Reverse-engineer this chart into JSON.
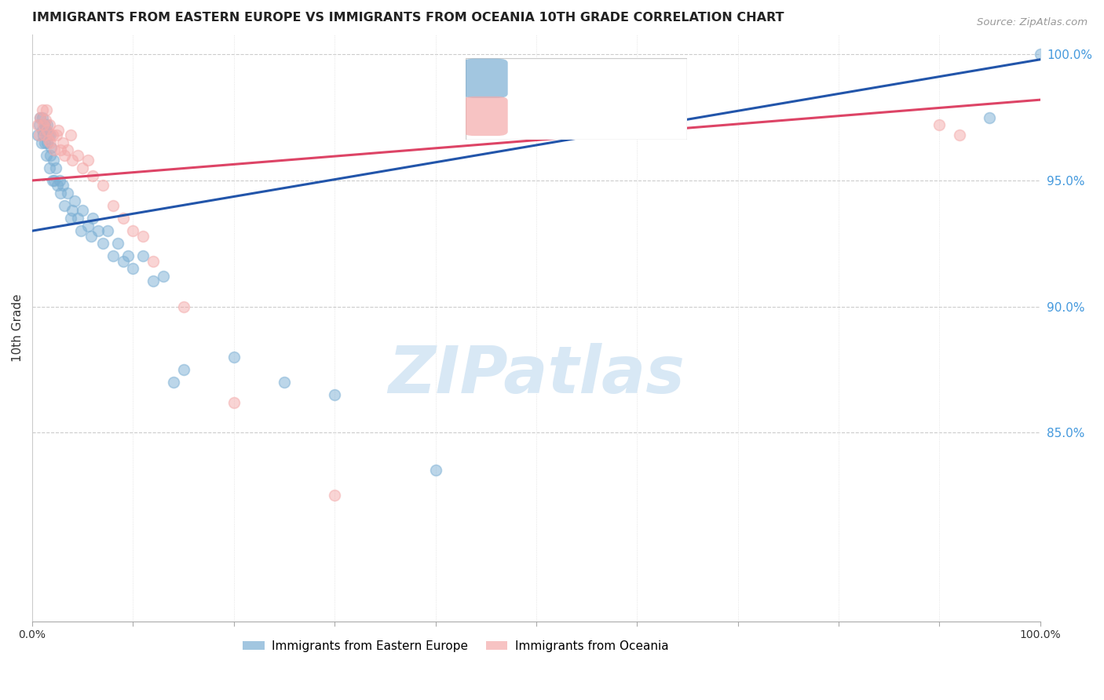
{
  "title": "IMMIGRANTS FROM EASTERN EUROPE VS IMMIGRANTS FROM OCEANIA 10TH GRADE CORRELATION CHART",
  "source": "Source: ZipAtlas.com",
  "ylabel": "10th Grade",
  "legend_blue_label": "Immigrants from Eastern Europe",
  "legend_pink_label": "Immigrants from Oceania",
  "blue_color": "#7BAFD4",
  "pink_color": "#F4AAAA",
  "trendline_blue": "#2255AA",
  "trendline_pink": "#DD4466",
  "watermark_text": "ZIPatlas",
  "watermark_color": "#D8E8F5",
  "right_tick_color": "#4499DD",
  "ytick_labels": [
    "85.0%",
    "90.0%",
    "95.0%",
    "100.0%"
  ],
  "ytick_values": [
    0.85,
    0.9,
    0.95,
    1.0
  ],
  "xlim": [
    0.0,
    1.0
  ],
  "ylim": [
    0.775,
    1.008
  ],
  "blue_scatter_x": [
    0.005,
    0.007,
    0.008,
    0.009,
    0.01,
    0.01,
    0.011,
    0.012,
    0.012,
    0.013,
    0.014,
    0.015,
    0.015,
    0.016,
    0.017,
    0.018,
    0.018,
    0.019,
    0.02,
    0.021,
    0.022,
    0.023,
    0.025,
    0.027,
    0.028,
    0.03,
    0.032,
    0.035,
    0.038,
    0.04,
    0.042,
    0.045,
    0.048,
    0.05,
    0.055,
    0.058,
    0.06,
    0.065,
    0.07,
    0.075,
    0.08,
    0.085,
    0.09,
    0.095,
    0.1,
    0.11,
    0.12,
    0.13,
    0.14,
    0.15,
    0.2,
    0.25,
    0.3,
    0.4,
    0.95,
    1.0
  ],
  "blue_scatter_y": [
    0.968,
    0.972,
    0.975,
    0.965,
    0.97,
    0.975,
    0.968,
    0.972,
    0.965,
    0.97,
    0.96,
    0.965,
    0.972,
    0.968,
    0.955,
    0.96,
    0.968,
    0.963,
    0.95,
    0.958,
    0.95,
    0.955,
    0.948,
    0.95,
    0.945,
    0.948,
    0.94,
    0.945,
    0.935,
    0.938,
    0.942,
    0.935,
    0.93,
    0.938,
    0.932,
    0.928,
    0.935,
    0.93,
    0.925,
    0.93,
    0.92,
    0.925,
    0.918,
    0.92,
    0.915,
    0.92,
    0.91,
    0.912,
    0.87,
    0.875,
    0.88,
    0.87,
    0.865,
    0.835,
    0.975,
    1.0
  ],
  "pink_scatter_x": [
    0.005,
    0.007,
    0.008,
    0.01,
    0.011,
    0.012,
    0.013,
    0.014,
    0.015,
    0.016,
    0.017,
    0.018,
    0.02,
    0.022,
    0.024,
    0.026,
    0.028,
    0.03,
    0.032,
    0.035,
    0.038,
    0.04,
    0.045,
    0.05,
    0.055,
    0.06,
    0.07,
    0.08,
    0.09,
    0.1,
    0.11,
    0.12,
    0.15,
    0.2,
    0.3,
    0.9,
    0.92
  ],
  "pink_scatter_y": [
    0.972,
    0.968,
    0.975,
    0.978,
    0.972,
    0.968,
    0.974,
    0.978,
    0.97,
    0.966,
    0.972,
    0.965,
    0.968,
    0.962,
    0.968,
    0.97,
    0.962,
    0.965,
    0.96,
    0.962,
    0.968,
    0.958,
    0.96,
    0.955,
    0.958,
    0.952,
    0.948,
    0.94,
    0.935,
    0.93,
    0.928,
    0.918,
    0.9,
    0.862,
    0.825,
    0.972,
    0.968
  ],
  "blue_line_x": [
    0.0,
    1.0
  ],
  "blue_line_y": [
    0.93,
    0.998
  ],
  "pink_line_x": [
    0.0,
    1.0
  ],
  "pink_line_y": [
    0.95,
    0.982
  ],
  "title_fontsize": 11.5,
  "source_fontsize": 9.5,
  "watermark_fontsize": 60,
  "marker_size": 100,
  "marker_alpha": 0.5,
  "marker_lw": 1.2
}
